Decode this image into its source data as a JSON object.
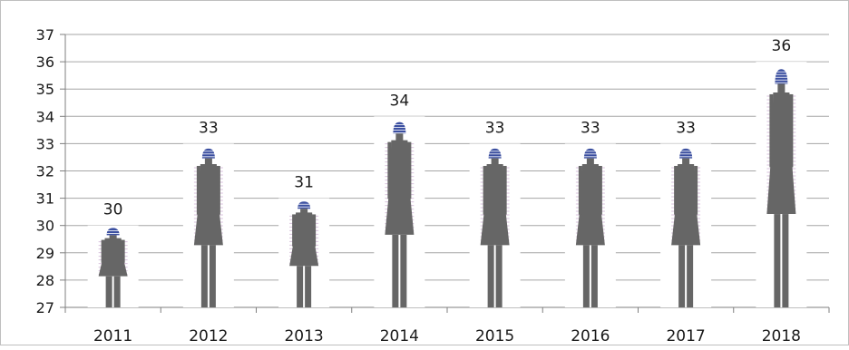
{
  "chart_data": {
    "type": "bar",
    "categories": [
      "2011",
      "2012",
      "2013",
      "2014",
      "2015",
      "2016",
      "2017",
      "2018"
    ],
    "values": [
      30,
      33,
      31,
      34,
      33,
      33,
      33,
      36
    ],
    "ylim": [
      27,
      37
    ],
    "yticks": [
      27,
      28,
      29,
      30,
      31,
      32,
      33,
      34,
      35,
      36,
      37
    ],
    "grid": true,
    "mark": "female-figure-icon",
    "colors": {
      "figure": "#666666",
      "hat": "#3b4fa0",
      "accent": "#c9a9cf",
      "grid": "#a6a6a6",
      "frame": "#7f7f7f"
    }
  }
}
